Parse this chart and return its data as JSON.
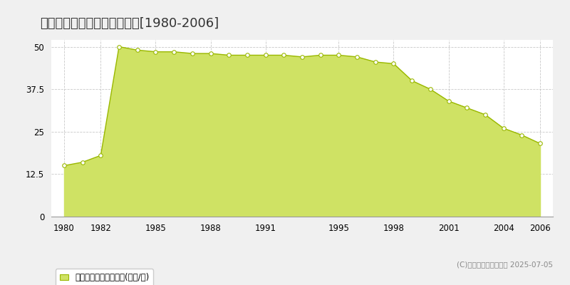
{
  "title": "和歌山市福島　公示地価推移[1980-2006]",
  "years": [
    1980,
    1981,
    1982,
    1983,
    1984,
    1985,
    1986,
    1987,
    1988,
    1989,
    1990,
    1991,
    1992,
    1993,
    1994,
    1995,
    1996,
    1997,
    1998,
    1999,
    2000,
    2001,
    2002,
    2003,
    2004,
    2005,
    2006
  ],
  "values": [
    15.0,
    16.0,
    18.0,
    50.0,
    49.0,
    48.5,
    48.5,
    48.0,
    48.0,
    47.5,
    47.5,
    47.5,
    47.5,
    47.0,
    47.5,
    47.5,
    47.0,
    45.5,
    45.0,
    40.0,
    37.5,
    34.0,
    32.0,
    30.0,
    26.0,
    24.0,
    21.5
  ],
  "fill_color": "#cfe264",
  "line_color": "#9ab800",
  "marker_facecolor": "#ffffff",
  "marker_edgecolor": "#9ab800",
  "bg_color": "#f0f0f0",
  "plot_bg_color": "#ffffff",
  "grid_color": "#bbbbbb",
  "ylim": [
    0,
    52
  ],
  "yticks": [
    0,
    12.5,
    25,
    37.5,
    50
  ],
  "xticks": [
    1980,
    1982,
    1985,
    1988,
    1991,
    1995,
    1998,
    2001,
    2004,
    2006
  ],
  "xlim": [
    1979.3,
    2006.7
  ],
  "legend_label": "公示地価　平均坪単価(万円/坪)",
  "copyright_text": "(C)土地価格ドットコム 2025-07-05",
  "title_fontsize": 13,
  "tick_fontsize": 8.5,
  "legend_fontsize": 8.5,
  "copyright_fontsize": 7.5
}
